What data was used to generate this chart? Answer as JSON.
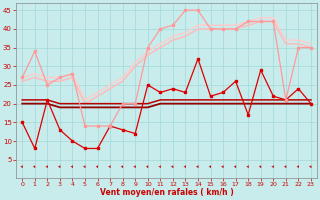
{
  "xlabel": "Vent moyen/en rafales ( km/h )",
  "xlim": [
    -0.5,
    23.5
  ],
  "ylim": [
    0,
    47
  ],
  "yticks": [
    5,
    10,
    15,
    20,
    25,
    30,
    35,
    40,
    45
  ],
  "xticks": [
    0,
    1,
    2,
    3,
    4,
    5,
    6,
    7,
    8,
    9,
    10,
    11,
    12,
    13,
    14,
    15,
    16,
    17,
    18,
    19,
    20,
    21,
    22,
    23
  ],
  "bg_color": "#c8ecec",
  "grid_color": "#a0d8d8",
  "text_color": "#cc0000",
  "series": [
    {
      "y": [
        15,
        8,
        21,
        13,
        10,
        8,
        8,
        14,
        13,
        12,
        25,
        23,
        24,
        23,
        32,
        22,
        23,
        26,
        17,
        29,
        22,
        21,
        24,
        20
      ],
      "color": "#dd0000",
      "linewidth": 0.9,
      "marker": "s",
      "markersize": 2.0,
      "zorder": 6
    },
    {
      "y": [
        20,
        20,
        20,
        19,
        19,
        19,
        19,
        19,
        19,
        19,
        19,
        20,
        20,
        20,
        20,
        20,
        20,
        20,
        20,
        20,
        20,
        20,
        20,
        20
      ],
      "color": "#990000",
      "linewidth": 1.3,
      "marker": null,
      "markersize": 0,
      "zorder": 3
    },
    {
      "y": [
        21,
        21,
        21,
        20,
        20,
        20,
        20,
        20,
        20,
        20,
        20,
        21,
        21,
        21,
        21,
        21,
        21,
        21,
        21,
        21,
        21,
        21,
        21,
        21
      ],
      "color": "#bb0000",
      "linewidth": 1.1,
      "marker": null,
      "markersize": 0,
      "zorder": 4
    },
    {
      "y": [
        27,
        34,
        25,
        27,
        28,
        14,
        14,
        14,
        20,
        20,
        35,
        40,
        41,
        45,
        45,
        40,
        40,
        40,
        42,
        42,
        42,
        21,
        35,
        35
      ],
      "color": "#ff9999",
      "linewidth": 0.9,
      "marker": "s",
      "markersize": 2.0,
      "zorder": 6
    },
    {
      "y": [
        26,
        27,
        26,
        26,
        27,
        20,
        22,
        24,
        26,
        30,
        33,
        35,
        37,
        38,
        40,
        40,
        40,
        40,
        41,
        42,
        42,
        36,
        36,
        35
      ],
      "color": "#ffbbbb",
      "linewidth": 1.1,
      "marker": null,
      "markersize": 0,
      "zorder": 3
    },
    {
      "y": [
        27,
        28,
        27,
        27,
        28,
        21,
        23,
        25,
        27,
        31,
        34,
        36,
        38,
        39,
        41,
        41,
        41,
        41,
        42,
        43,
        43,
        37,
        37,
        36
      ],
      "color": "#ffcccc",
      "linewidth": 1.1,
      "marker": null,
      "markersize": 0,
      "zorder": 3
    }
  ]
}
